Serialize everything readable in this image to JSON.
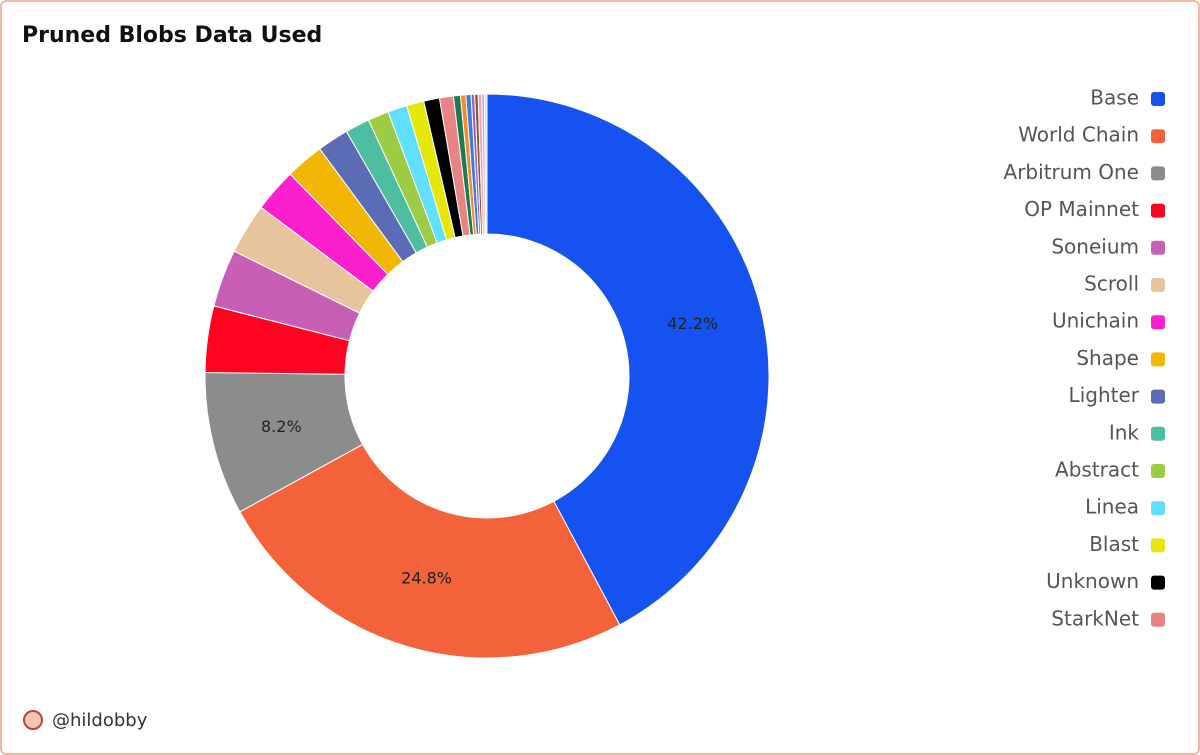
{
  "chart_data": {
    "type": "donut",
    "title": "Pruned Blobs Data Used",
    "categories": [
      "Base",
      "World Chain",
      "Arbitrum One",
      "OP Mainnet",
      "Soneium",
      "Scroll",
      "Unichain",
      "Shape",
      "Lighter",
      "Ink",
      "Abstract",
      "Linea",
      "Blast",
      "Unknown",
      "StarkNet",
      null,
      null,
      null,
      null,
      null,
      null,
      null,
      null
    ],
    "values": [
      42.2,
      24.8,
      8.2,
      3.8,
      3.3,
      2.9,
      2.5,
      2.2,
      1.8,
      1.4,
      1.2,
      1.1,
      1.0,
      0.9,
      0.8,
      0.4,
      0.3,
      0.3,
      0.2,
      0.2,
      0.2,
      0.15,
      0.15
    ],
    "value_labels": [
      "42.2%",
      "24.8%",
      "8.2%",
      null,
      null,
      null,
      null,
      null,
      null,
      null,
      null,
      null,
      null,
      null,
      null,
      null,
      null,
      null,
      null,
      null,
      null,
      null,
      null
    ],
    "colors": [
      "#1652f0",
      "#f4623c",
      "#8c8c8c",
      "#ff0420",
      "#c85fb5",
      "#e8c49c",
      "#fc1fce",
      "#f2b705",
      "#5b6bb5",
      "#4dbfa0",
      "#9ccc43",
      "#61dfff",
      "#e6e60a",
      "#000000",
      "#e98486",
      "#1e7a4f",
      "#f48b2a",
      "#3b7dd8",
      "#9a5fc9",
      "#8b5a2b",
      "#f3a0c0",
      "#b0b0b0",
      "#d9d9d9"
    ],
    "legend": "right"
  },
  "credit": "@hildobby"
}
